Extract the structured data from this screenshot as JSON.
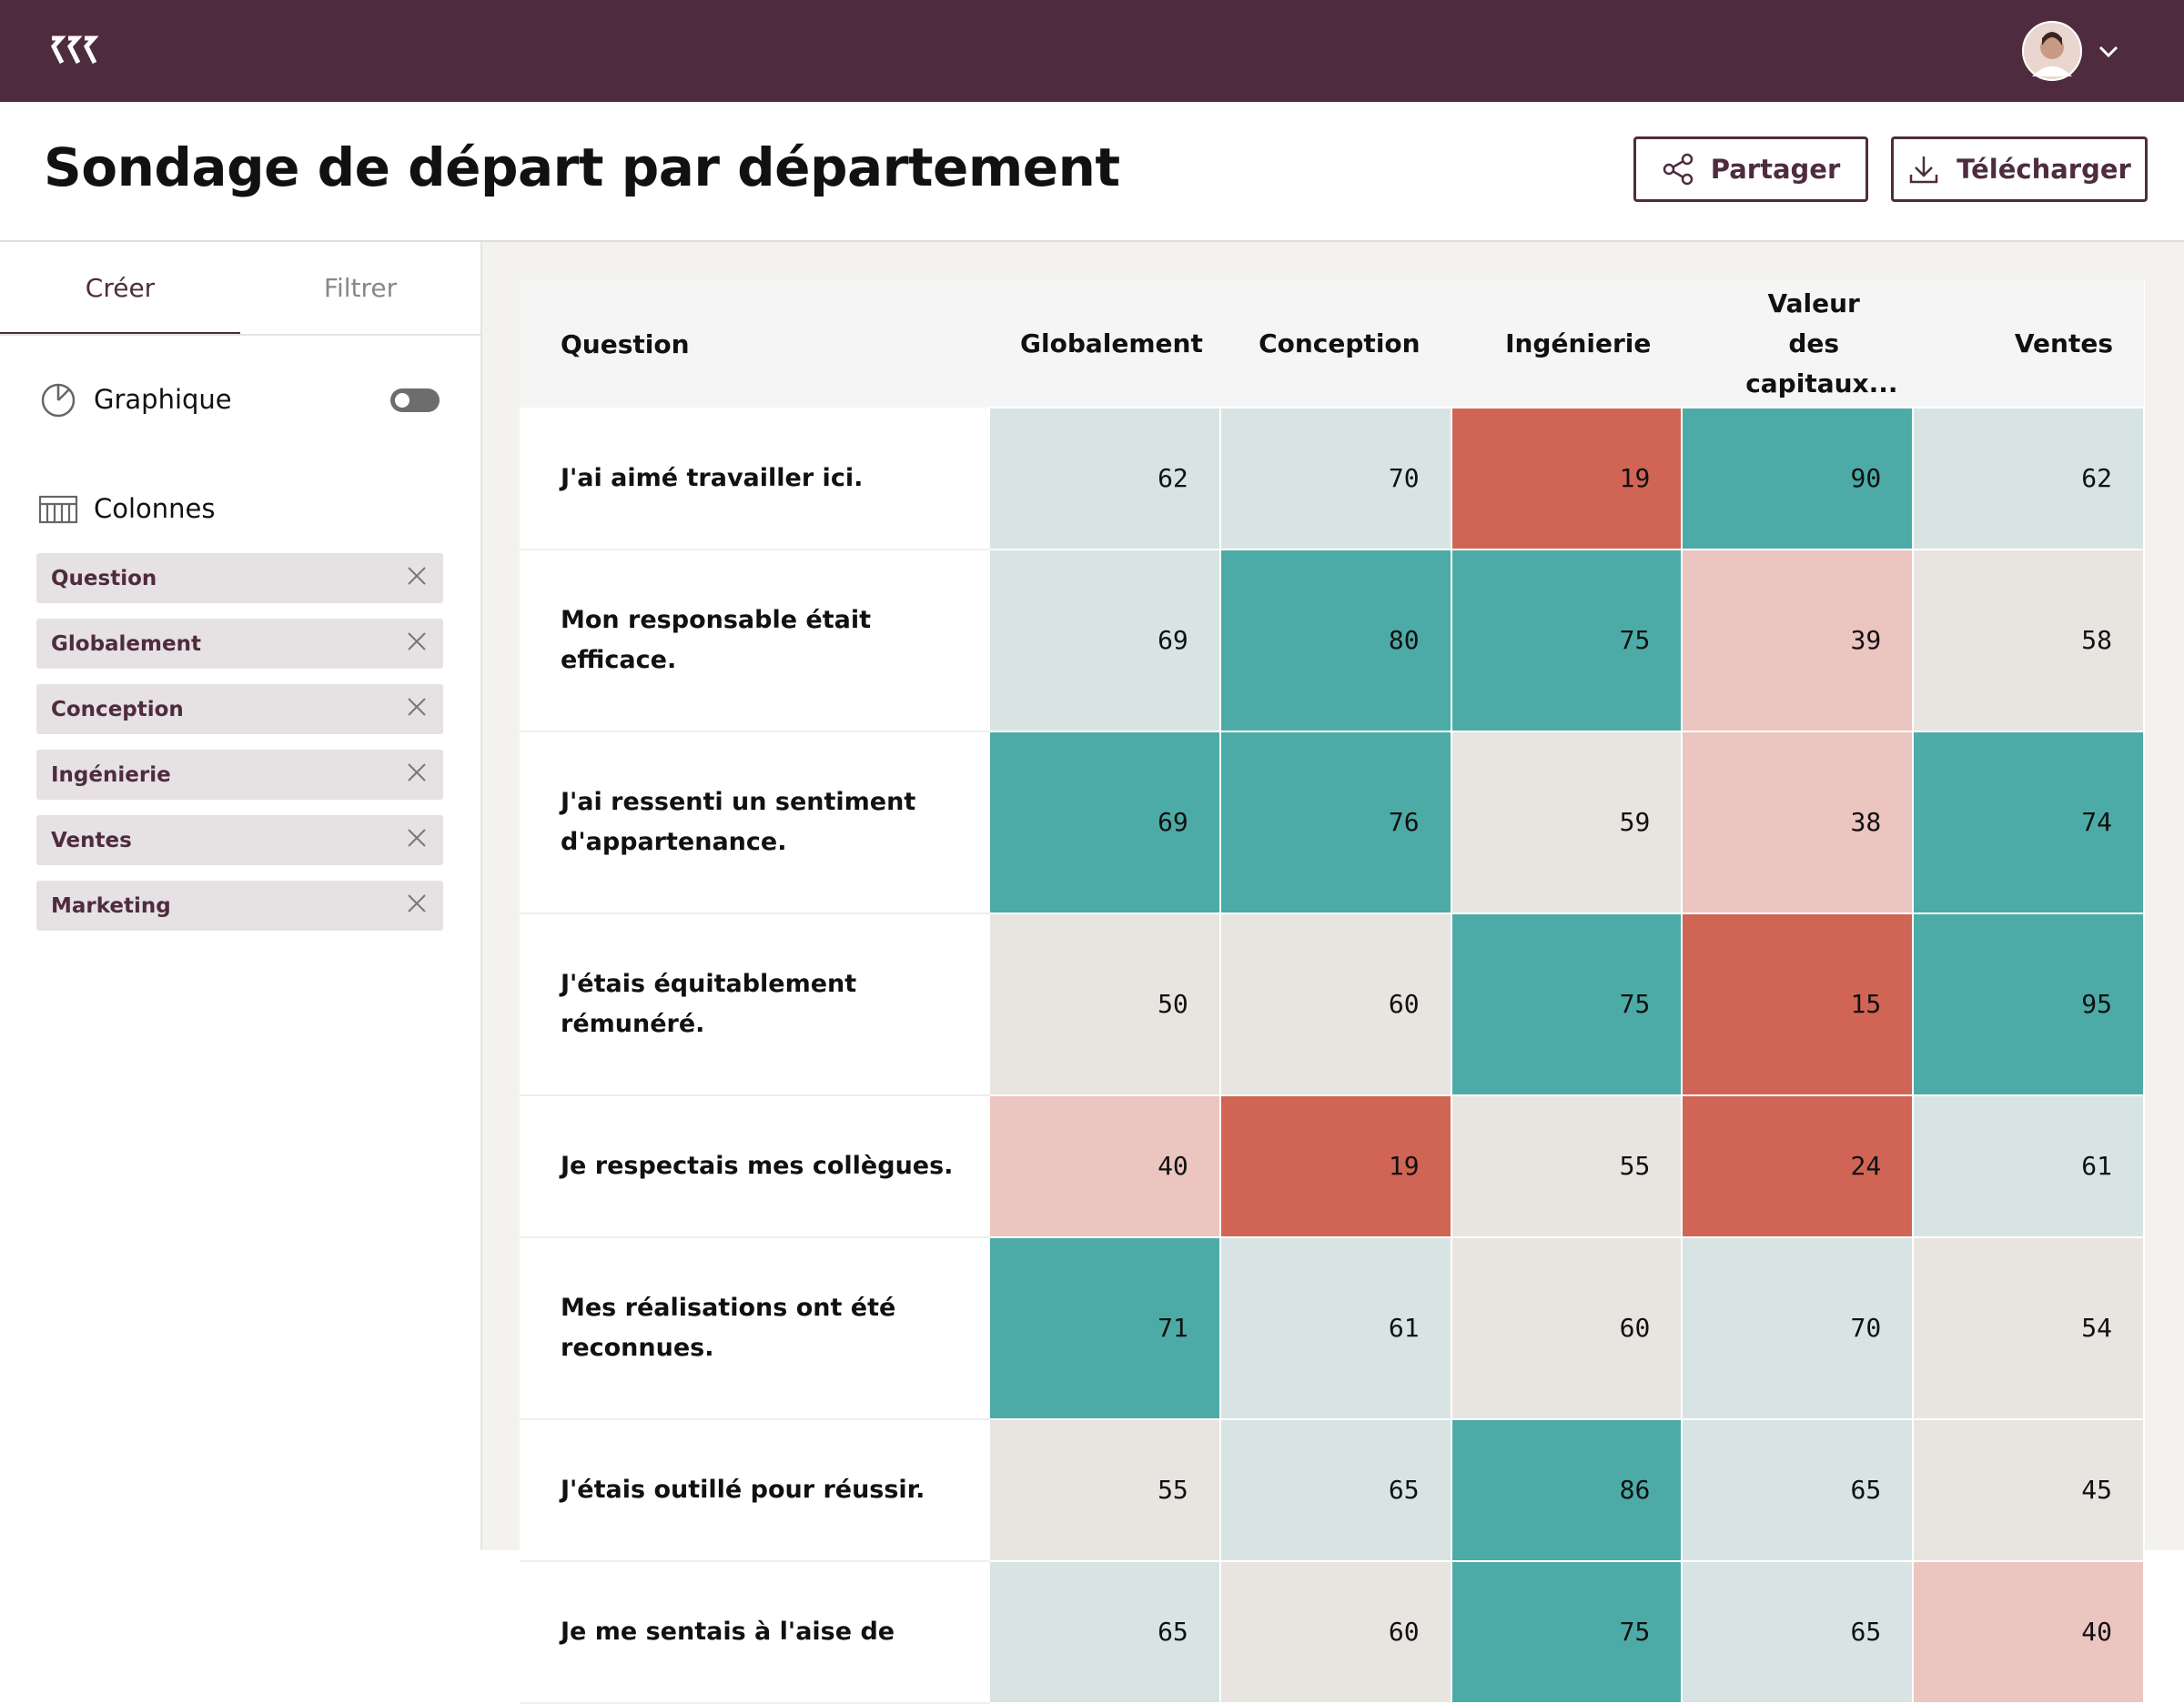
{
  "header": {
    "title": "Sondage de départ par département",
    "buttons": [
      "Partager",
      "Télécharger"
    ]
  },
  "sidebar": {
    "tabs": [
      "Créer",
      "Filtrer"
    ],
    "chart_toggle": "Graphique",
    "columns_label": "Colonnes",
    "columns": [
      "Question",
      "Globalement",
      "Conception",
      "Ingénierie",
      "Ventes",
      "Marketing"
    ]
  },
  "table": {
    "headers": [
      "Question",
      "Globalement",
      "Conception",
      "Ingénierie",
      "Valeur des capitaux...",
      "Ventes"
    ],
    "rows": [
      {
        "question": "J'ai aimé travailler ici.",
        "values": [
          62,
          70,
          19,
          90,
          62
        ],
        "colors": [
          "#d7e4e3",
          "#d7e4e3",
          "#d06556",
          "#4daba7",
          "#d7e4e3"
        ]
      },
      {
        "question": "Mon responsable était efficace.",
        "values": [
          69,
          80,
          75,
          39,
          58
        ],
        "colors": [
          "#d7e4e3",
          "#4daba7",
          "#4daba7",
          "#ecc5c0",
          "#e8e4e0"
        ]
      },
      {
        "question": "J'ai ressenti un sentiment d'appartenance.",
        "values": [
          69,
          76,
          59,
          38,
          74
        ],
        "colors": [
          "#4daba7",
          "#4daba7",
          "#e8e4e0",
          "#ecc5c0",
          "#4daba7"
        ]
      },
      {
        "question": "J'étais équitablement rémunéré.",
        "values": [
          50,
          60,
          75,
          15,
          95
        ],
        "colors": [
          "#e8e4e0",
          "#e8e4e0",
          "#4daba7",
          "#d06556",
          "#4daba7"
        ]
      },
      {
        "question": "Je respectais mes collègues.",
        "values": [
          40,
          19,
          55,
          24,
          61
        ],
        "colors": [
          "#ecc5c0",
          "#d06556",
          "#e8e4e0",
          "#d06556",
          "#d7e4e3"
        ]
      },
      {
        "question": "Mes réalisations ont été reconnues.",
        "values": [
          71,
          61,
          60,
          70,
          54
        ],
        "colors": [
          "#4daba7",
          "#d7e4e3",
          "#e8e4e0",
          "#d7e4e3",
          "#e8e4e0"
        ]
      },
      {
        "question": "J'étais outillé pour réussir.",
        "values": [
          55,
          65,
          86,
          65,
          45
        ],
        "colors": [
          "#e8e4e0",
          "#d7e4e3",
          "#4daba7",
          "#d7e4e3",
          "#e8e4e0"
        ]
      },
      {
        "question": "Je me sentais à l'aise de",
        "values": [
          65,
          60,
          75,
          65,
          40
        ],
        "colors": [
          "#d7e4e3",
          "#e8e4e0",
          "#4daba7",
          "#d7e4e3",
          "#ecc5c0"
        ]
      }
    ]
  }
}
